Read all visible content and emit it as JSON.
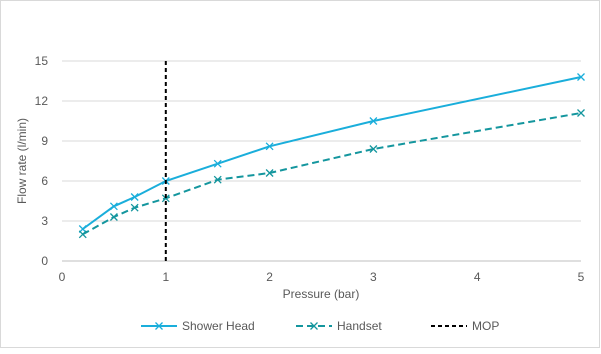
{
  "chart_data": {
    "type": "line",
    "title": "",
    "xlabel": "Pressure (bar)",
    "ylabel": "Flow rate (l/min)",
    "xlim": [
      0,
      5
    ],
    "ylim": [
      0,
      15
    ],
    "x_ticks": [
      "0",
      "1",
      "2",
      "3",
      "4",
      "5"
    ],
    "y_ticks": [
      "0",
      "3",
      "6",
      "9",
      "12",
      "15"
    ],
    "grid": "horizontal",
    "legend_position": "bottom",
    "series": [
      {
        "name": "Shower Head",
        "color": "#1aaedb",
        "line_style": "solid",
        "marker": "x",
        "x": [
          0.2,
          0.5,
          0.7,
          1.0,
          1.5,
          2.0,
          3.0,
          5.0
        ],
        "y": [
          2.4,
          4.1,
          4.8,
          6.0,
          7.3,
          8.6,
          10.5,
          13.8
        ]
      },
      {
        "name": "Handset",
        "color": "#14969e",
        "line_style": "dashed",
        "marker": "x",
        "x": [
          0.2,
          0.5,
          0.7,
          1.0,
          1.5,
          2.0,
          3.0,
          5.0
        ],
        "y": [
          2.0,
          3.3,
          4.0,
          4.7,
          6.1,
          6.6,
          8.4,
          11.1
        ]
      },
      {
        "name": "MOP",
        "color": "#000000",
        "line_style": "dashed",
        "marker": "none",
        "x": [
          1.0,
          1.0
        ],
        "y": [
          0,
          15
        ]
      }
    ]
  }
}
